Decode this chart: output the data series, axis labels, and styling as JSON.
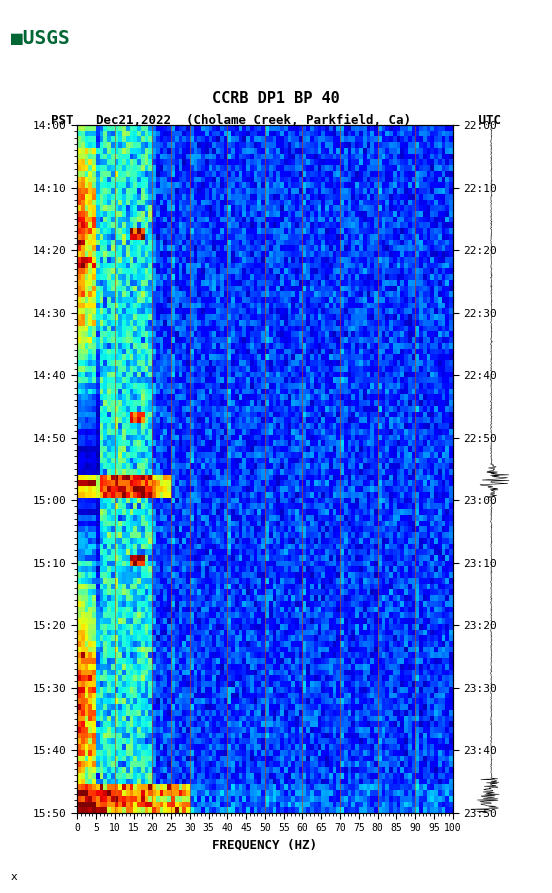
{
  "title_line1": "CCRB DP1 BP 40",
  "title_line2": "PST   Dec21,2022  (Cholame Creek, Parkfield, Ca)         UTC",
  "xlabel": "FREQUENCY (HZ)",
  "x_tick_labels": [
    "0",
    "5",
    "10",
    "15",
    "20",
    "25",
    "30",
    "35",
    "40",
    "45",
    "50",
    "55",
    "60",
    "65",
    "70",
    "75",
    "80",
    "85",
    "90",
    "95",
    "100"
  ],
  "x_tick_positions": [
    0,
    5,
    10,
    15,
    20,
    25,
    30,
    35,
    40,
    45,
    50,
    55,
    60,
    65,
    70,
    75,
    80,
    85,
    90,
    95,
    100
  ],
  "y_left_labels": [
    "14:00",
    "14:10",
    "14:20",
    "14:30",
    "14:40",
    "14:50",
    "15:00",
    "15:10",
    "15:20",
    "15:30",
    "15:40",
    "15:50"
  ],
  "y_right_labels": [
    "22:00",
    "22:10",
    "22:20",
    "22:30",
    "22:40",
    "22:50",
    "23:00",
    "23:10",
    "23:20",
    "23:30",
    "23:40",
    "23:50"
  ],
  "n_time": 120,
  "n_freq": 100,
  "freq_min": 0,
  "freq_max": 100,
  "background_color": "#ffffff",
  "usgs_logo_color": "#006633",
  "vertical_line_freqs": [
    10,
    20,
    25,
    30,
    40,
    50,
    60,
    70,
    80,
    90
  ],
  "vertical_line_color": "#cc4400",
  "spectrogram_colormap": "jet",
  "fig_width": 5.52,
  "fig_height": 8.93
}
